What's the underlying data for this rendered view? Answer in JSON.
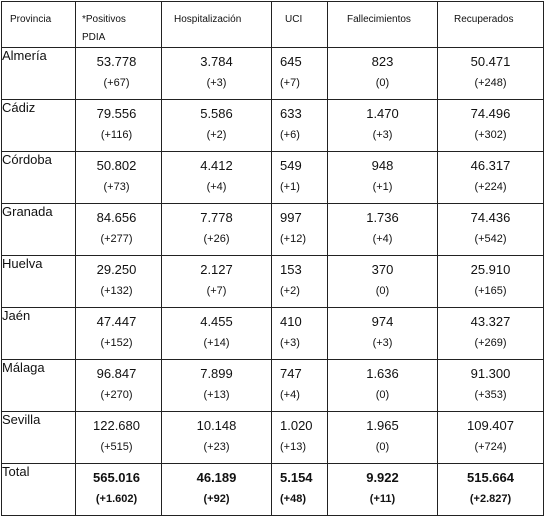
{
  "columns": [
    "Provincia",
    "*Positivos PDIA",
    "Hospitalización",
    "UCI",
    "Fallecimientos",
    "Recuperados"
  ],
  "column_lines": {
    "positivos": [
      "*Positivos",
      "PDIA"
    ]
  },
  "rows": [
    {
      "provincia": "Almería",
      "positivos": [
        "53.778",
        "(+67)"
      ],
      "hospitalizacion": [
        "3.784",
        "(+3)"
      ],
      "uci": [
        "645",
        "(+7)"
      ],
      "fallecimientos": [
        "823",
        "(0)"
      ],
      "recuperados": [
        "50.471",
        "(+248)"
      ]
    },
    {
      "provincia": "Cádiz",
      "positivos": [
        "79.556",
        "(+116)"
      ],
      "hospitalizacion": [
        "5.586",
        "(+2)"
      ],
      "uci": [
        "633",
        "(+6)"
      ],
      "fallecimientos": [
        "1.470",
        "(+3)"
      ],
      "recuperados": [
        "74.496",
        "(+302)"
      ]
    },
    {
      "provincia": "Córdoba",
      "positivos": [
        "50.802",
        "(+73)"
      ],
      "hospitalizacion": [
        "4.412",
        "(+4)"
      ],
      "uci": [
        "549",
        "(+1)"
      ],
      "fallecimientos": [
        "948",
        "(+1)"
      ],
      "recuperados": [
        "46.317",
        "(+224)"
      ]
    },
    {
      "provincia": "Granada",
      "positivos": [
        "84.656",
        "(+277)"
      ],
      "hospitalizacion": [
        "7.778",
        "(+26)"
      ],
      "uci": [
        "997",
        "(+12)"
      ],
      "fallecimientos": [
        "1.736",
        "(+4)"
      ],
      "recuperados": [
        "74.436",
        "(+542)"
      ]
    },
    {
      "provincia": "Huelva",
      "positivos": [
        "29.250",
        "(+132)"
      ],
      "hospitalizacion": [
        "2.127",
        "(+7)"
      ],
      "uci": [
        "153",
        "(+2)"
      ],
      "fallecimientos": [
        "370",
        "(0)"
      ],
      "recuperados": [
        "25.910",
        "(+165)"
      ]
    },
    {
      "provincia": "Jaén",
      "positivos": [
        "47.447",
        "(+152)"
      ],
      "hospitalizacion": [
        "4.455",
        "(+14)"
      ],
      "uci": [
        "410",
        "(+3)"
      ],
      "fallecimientos": [
        "974",
        "(+3)"
      ],
      "recuperados": [
        "43.327",
        "(+269)"
      ]
    },
    {
      "provincia": "Málaga",
      "positivos": [
        "96.847",
        "(+270)"
      ],
      "hospitalizacion": [
        "7.899",
        "(+13)"
      ],
      "uci": [
        "747",
        "(+4)"
      ],
      "fallecimientos": [
        "1.636",
        "(0)"
      ],
      "recuperados": [
        "91.300",
        "(+353)"
      ]
    },
    {
      "provincia": "Sevilla",
      "positivos": [
        "122.680",
        "(+515)"
      ],
      "hospitalizacion": [
        "10.148",
        "(+23)"
      ],
      "uci": [
        "1.020",
        "(+13)"
      ],
      "fallecimientos": [
        "1.965",
        "(0)"
      ],
      "recuperados": [
        "109.407",
        "(+724)"
      ]
    }
  ],
  "total": {
    "provincia": "Total",
    "positivos": [
      "565.016",
      "(+1.602)"
    ],
    "hospitalizacion": [
      "46.189",
      "(+92)"
    ],
    "uci": [
      "5.154",
      "(+48)"
    ],
    "fallecimientos": [
      "9.922",
      "(+11)"
    ],
    "recuperados": [
      "515.664",
      "(+2.827)"
    ]
  }
}
